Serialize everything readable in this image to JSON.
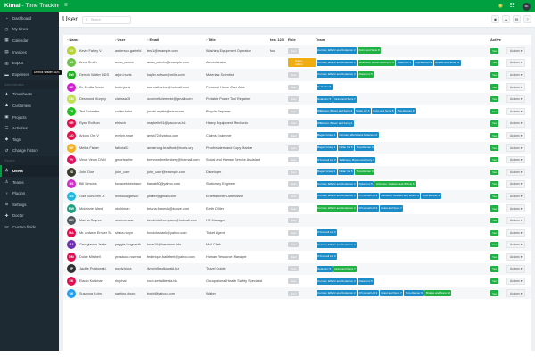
{
  "brand": {
    "bold": "Kimai",
    "rest": " - Time Tracking"
  },
  "sidebar": {
    "items": [
      {
        "label": "Dashboard",
        "icon": "tachometer-icon",
        "glyph": "◔"
      },
      {
        "label": "My times",
        "icon": "clock-icon",
        "glyph": "◷"
      },
      {
        "label": "Calendar",
        "icon": "calendar-icon",
        "glyph": "▦"
      },
      {
        "label": "Invoices",
        "icon": "invoice-icon",
        "glyph": "▤"
      },
      {
        "label": "Export",
        "icon": "export-icon",
        "glyph": "▥"
      },
      {
        "label": "Expenses",
        "icon": "money-icon",
        "glyph": "▬"
      },
      {
        "section": "Administration"
      },
      {
        "label": "Timesheets",
        "icon": "users-clock-icon",
        "glyph": "♟"
      },
      {
        "label": "Customers",
        "icon": "user-tie-icon",
        "glyph": "♟"
      },
      {
        "label": "Projects",
        "icon": "briefcase-icon",
        "glyph": "▣"
      },
      {
        "label": "Activities",
        "icon": "tasks-icon",
        "glyph": "☰"
      },
      {
        "label": "Tags",
        "icon": "tags-icon",
        "glyph": "◆"
      },
      {
        "label": "Change history",
        "icon": "history-icon",
        "glyph": "↺"
      },
      {
        "section": "System"
      },
      {
        "label": "Users",
        "icon": "users-icon",
        "glyph": "♙",
        "active": true
      },
      {
        "label": "Teams",
        "icon": "teams-icon",
        "glyph": "♙"
      },
      {
        "label": "Plugins",
        "icon": "plug-icon",
        "glyph": "♆"
      },
      {
        "label": "Settings",
        "icon": "settings-icon",
        "glyph": "⚙"
      },
      {
        "label": "Doctor",
        "icon": "medkit-icon",
        "glyph": "✚"
      },
      {
        "label": "Custom fields",
        "icon": "custom-fields-icon",
        "glyph": "▭"
      }
    ]
  },
  "topbar": {
    "user_initials": "SK"
  },
  "page": {
    "title": "User",
    "search_placeholder": "Search"
  },
  "tooltip": "Derrick Walter DDS",
  "table": {
    "headers": {
      "name": "Name",
      "user": "User",
      "email": "Email",
      "title": "Title",
      "test": "test 123",
      "role": "Role",
      "team": "Team",
      "active": "Active"
    },
    "active_label": "Yes",
    "actions_label": "Actions ▾",
    "rows": [
      {
        "initials": "KV",
        "color": "#b5d334",
        "name": "Kevin Fahey V",
        "user": "anderson.garfield",
        "email": "test1@example.com",
        "title": "Washing Equipment Operator",
        "test": "foo",
        "role": "User",
        "teams": [
          [
            "Cormier, Effertz and Anderson 2",
            0
          ],
          [
            "Kuhn and Sons 8",
            1
          ]
        ]
      },
      {
        "initials": "AS",
        "color": "#6cc04a",
        "name": "Anna Smith",
        "user": "anna_admin",
        "email": "anna_admin@example.com",
        "title": "Administrator",
        "test": "",
        "role": "Super-Admin",
        "teams": [
          [
            "Cormier, Effertz and Anderson 2",
            0
          ],
          [
            "Wilkinson, Brown and Ferry 4",
            1
          ],
          [
            "Nolan Inc 5",
            0
          ],
          [
            "Torp-Renner 9",
            0
          ],
          [
            "Brakus and Sons 10",
            0
          ]
        ]
      },
      {
        "initials": "DW",
        "color": "#1db01d",
        "name": "Derrick Walter DDS",
        "user": "arjun.huels",
        "email": "kaylin.rolfson@mills.com",
        "title": "Materials Scientist",
        "test": "",
        "role": "User",
        "teams": [
          [
            "Cormier, Effertz and Anderson 2",
            0
          ],
          [
            "Nolan Inc 5",
            1
          ]
        ]
      },
      {
        "initials": "DE",
        "color": "#d21fd2",
        "name": "Dr. Emilia Brown",
        "user": "bode.janis",
        "email": "sue.catharine@hotmail.com",
        "title": "Personal Home Care Aide",
        "test": "",
        "role": "User",
        "teams": [
          [
            "Nolan Inc 5",
            0
          ]
        ]
      },
      {
        "initials": "DM",
        "color": "#c0e050",
        "name": "Desmond Murphy",
        "user": "clarissa35",
        "email": "oconnell.clemmie@gmail.com",
        "title": "Portable Power Tool Repairer",
        "test": "",
        "role": "User",
        "teams": [
          [
            "Nolan Inc 5",
            0
          ],
          [
            "Grant and Sons 7",
            0
          ]
        ]
      },
      {
        "initials": "TS",
        "color": "#22c022",
        "name": "Ted Schaefer",
        "user": "collier.hahn",
        "email": "jacobi.myrtle@wiza.com",
        "title": "Bicycle Repairer",
        "test": "",
        "role": "User",
        "teams": [
          [
            "Wilkinson, Brown and Ferry 4",
            0
          ],
          [
            "Nolan Inc 5",
            0
          ],
          [
            "Kuhn and Sons 8",
            0
          ],
          [
            "Torp-Renner 9",
            0
          ]
        ]
      },
      {
        "initials": "RR",
        "color": "#e0124e",
        "name": "Ryan Rolfson",
        "user": "ehtisch",
        "email": "maybelle91@pacocha.biz",
        "title": "Heavy Equipment Mechanic",
        "test": "",
        "role": "User",
        "teams": [
          [
            "Wilkinson, Brown and Ferry 4",
            0
          ]
        ]
      },
      {
        "initials": "AO",
        "color": "#e0124e",
        "name": "Arjuno Orn V",
        "user": "evelyn.rowe",
        "email": "greta72@yahoo.com",
        "title": "Claims Examiner",
        "test": "",
        "role": "User",
        "teams": [
          [
            "Bogan Group 1",
            0
          ],
          [
            "Cormier, Effertz and Anderson 2",
            0
          ]
        ]
      },
      {
        "initials": "MF",
        "color": "#f0b020",
        "name": "Melba Fisher",
        "user": "fabiola53",
        "email": "armstrong.bradford@huels.org",
        "title": "Proofreaders and Copy Marker",
        "test": "",
        "role": "User",
        "teams": [
          [
            "Bogan Group 1",
            0
          ],
          [
            "Nolan Inc 5",
            0
          ],
          [
            "Torp-Renner 9",
            0
          ]
        ]
      },
      {
        "initials": "VV",
        "color": "#e01060",
        "name": "Vince Veum DVM",
        "user": "gmorissette",
        "email": "brennon.breitenberg@hotmail.com",
        "title": "Social and Human Service Assistant",
        "test": "",
        "role": "User",
        "teams": [
          [
            "O'Connell Ltd 3",
            0
          ],
          [
            "Wilkinson, Brown and Ferry 4",
            0
          ]
        ]
      },
      {
        "initials": "JD",
        "color": "#3a3a2a",
        "name": "John Doe",
        "user": "john_user",
        "email": "john_user@example.com",
        "title": "Developer",
        "test": "",
        "role": "User",
        "teams": [
          [
            "Bogan Group 1",
            0
          ],
          [
            "Nolan Inc 5",
            0
          ],
          [
            "Torp-Renner 9",
            1
          ]
        ]
      },
      {
        "initials": "BS",
        "color": "#d030c8",
        "name": "Bill Simonis",
        "user": "kovacek.keshaun",
        "email": "tiamat80@yahoo.com",
        "title": "Stationary Engineer",
        "test": "",
        "role": "User",
        "teams": [
          [
            "Cormier, Effertz and Anderson 2",
            0
          ],
          [
            "Nolan Inc 5",
            0
          ],
          [
            "Johnston, Graham and Willms 6",
            1
          ]
        ]
      },
      {
        "initials": "OS",
        "color": "#20b8e0",
        "name": "Odis Schumm Jr.",
        "user": "lenwood.gibson",
        "email": "jwalter@gmail.com",
        "title": "Entertainment Attendant",
        "test": "",
        "role": "User",
        "teams": [
          [
            "Cormier, Effertz and Anderson 2",
            0
          ],
          [
            "O'Connell Ltd 3",
            0
          ],
          [
            "Johnston, Graham and Willms 6",
            0
          ],
          [
            "Torp-Renner 9",
            0
          ]
        ]
      },
      {
        "initials": "MW",
        "color": "#20a080",
        "name": "Mckenzie Ward",
        "user": "nkuhlman",
        "email": "briana.franecki@kunze.com",
        "title": "Earth Driller",
        "test": "",
        "role": "User",
        "teams": [
          [
            "Cormier, Effertz and Anderson 2",
            1
          ],
          [
            "O'Connell Ltd 3",
            0
          ],
          [
            "Grant and Sons 7",
            0
          ]
        ]
      },
      {
        "initials": "MR",
        "color": "#505a60",
        "name": "Marina Raynor",
        "user": "oconner.sac",
        "email": "kendrick.thompson@hotmail.com",
        "title": "HR Manager",
        "test": "",
        "role": "User",
        "teams": []
      },
      {
        "initials": "MA",
        "color": "#e01050",
        "name": "Mr. Antwon Ernser Sr.",
        "user": "shara.robyn",
        "email": "hcruickshank@yahoo.com",
        "title": "Ticket Agent",
        "test": "",
        "role": "User",
        "teams": [
          [
            "O'Connell Ltd 3",
            0
          ]
        ]
      },
      {
        "initials": "GJ",
        "color": "#7030b0",
        "name": "Georgianna Jerde",
        "user": "peggie.langworth",
        "email": "louie10@hermann.info",
        "title": "Mail Clerk",
        "test": "",
        "role": "User",
        "teams": [
          [
            "Cormier, Effertz and Anderson 2",
            0
          ]
        ]
      },
      {
        "initials": "DM",
        "color": "#e01050",
        "name": "Dulce Mitchell",
        "user": "prosacco.rowena",
        "email": "federique.balistreri@yahoo.com",
        "title": "Human Resource Manager",
        "test": "",
        "role": "User",
        "teams": [
          [
            "O'Connell Ltd 3",
            0
          ]
        ]
      },
      {
        "initials": "JP",
        "color": "#303030",
        "name": "Jackie Powlowski",
        "user": "purdy.kiara",
        "email": "llynch@gutkowski.biz",
        "title": "Travel Guide",
        "test": "",
        "role": "User",
        "teams": [
          [
            "Nolan Inc 5",
            0
          ],
          [
            "Grant and Sons 7",
            1
          ]
        ]
      },
      {
        "initials": "EK",
        "color": "#e01050",
        "name": "Eladio Kuhlman",
        "user": "rkuphal",
        "email": "roob.zettaliberda.biz",
        "title": "Occupational Health Safety Specialist",
        "test": "",
        "role": "User",
        "teams": [
          [
            "Cormier, Effertz and Anderson 2",
            0
          ],
          [
            "Nolan Inc 5",
            0
          ]
        ]
      },
      {
        "initials": "SK",
        "color": "#20a0f0",
        "name": "Susanna Kuhn",
        "user": "santino.olson",
        "email": "borbi@yahoo.com",
        "title": "Waiter",
        "test": "",
        "role": "User",
        "teams": [
          [
            "Cormier, Effertz and Anderson 2",
            0
          ],
          [
            "O'Connell Ltd 3",
            0
          ],
          [
            "Grant and Sons 7",
            0
          ],
          [
            "Torp-Renner 9",
            0
          ],
          [
            "Brakus and Sons 10",
            1
          ]
        ]
      }
    ]
  },
  "colors": {
    "brand": "#00a040",
    "sidebar": "#1e2a33",
    "team_badge": "#1b8cc8",
    "team_badge_alt": "#1fb144",
    "super_admin": "#f0ad10"
  }
}
